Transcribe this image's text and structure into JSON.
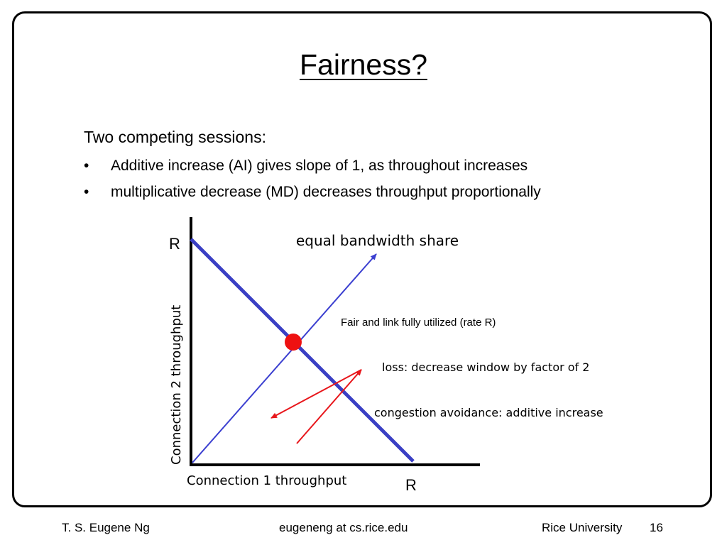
{
  "slide": {
    "title": "Fairness?",
    "intro": "Two competing sessions:",
    "bullets": [
      {
        "marker": "•",
        "text": "Additive increase (AI) gives slope of 1, as throughout increases"
      },
      {
        "marker": "•",
        "text": "multiplicative decrease (MD) decreases throughput proportionally"
      }
    ]
  },
  "diagram": {
    "y_axis_label": "Connection 2 throughput",
    "x_axis_label": "Connection 1 throughput",
    "y_max_label": "R",
    "x_max_label": "R",
    "equal_share_label": "equal bandwidth share",
    "fair_point_label": "Fair and link fully utilized (rate R)",
    "loss_label": "loss: decrease window by factor of 2",
    "ca_label": "congestion avoidance: additive increase",
    "colors": {
      "axis": "#000000",
      "capacity_line": "#3a3fc4",
      "equal_share_line": "#3b3fd0",
      "trajectory": "#e8161b",
      "fair_point": "#ee1111"
    }
  },
  "footer": {
    "author": "T. S. Eugene Ng",
    "email": "eugeneng at cs.rice.edu",
    "institution": "Rice University",
    "page_number": "16"
  }
}
